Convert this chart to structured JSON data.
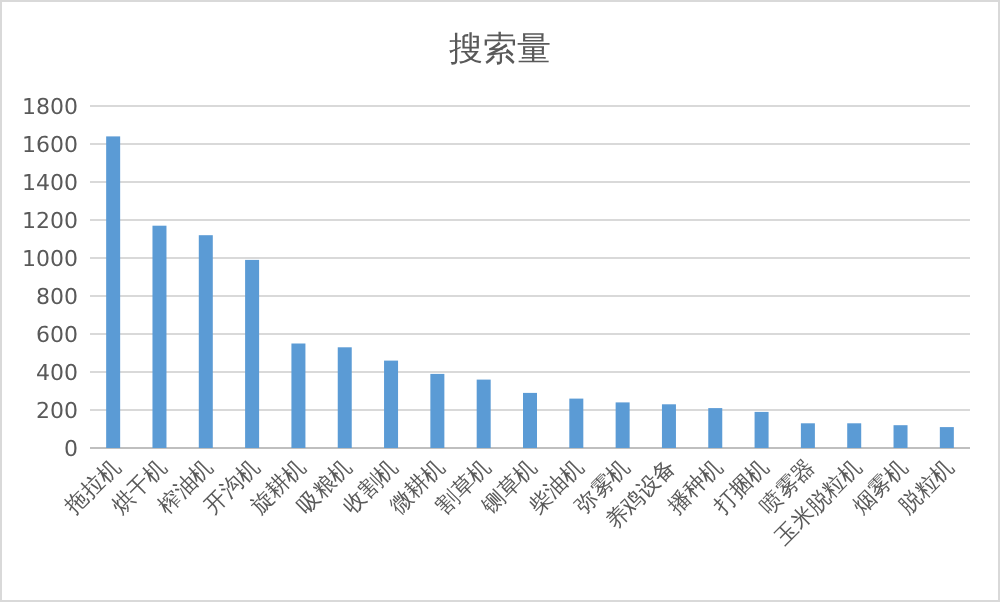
{
  "chart_data": {
    "type": "bar",
    "title": "搜索量",
    "categories": [
      "拖拉机",
      "烘干机",
      "榨油机",
      "开沟机",
      "旋耕机",
      "吸粮机",
      "收割机",
      "微耕机",
      "割草机",
      "铡草机",
      "柴油机",
      "弥雾机",
      "养鸡设备",
      "播种机",
      "打捆机",
      "喷雾器",
      "玉米脱粒机",
      "烟雾机",
      "脱粒机"
    ],
    "values": [
      1640,
      1170,
      1120,
      990,
      550,
      530,
      460,
      390,
      360,
      290,
      260,
      240,
      230,
      210,
      190,
      130,
      130,
      120,
      110
    ],
    "color": "#5b9bd5",
    "ylim": [
      0,
      1800
    ],
    "yticks": [
      0,
      200,
      400,
      600,
      800,
      1000,
      1200,
      1400,
      1600,
      1800
    ],
    "grid": "y"
  }
}
